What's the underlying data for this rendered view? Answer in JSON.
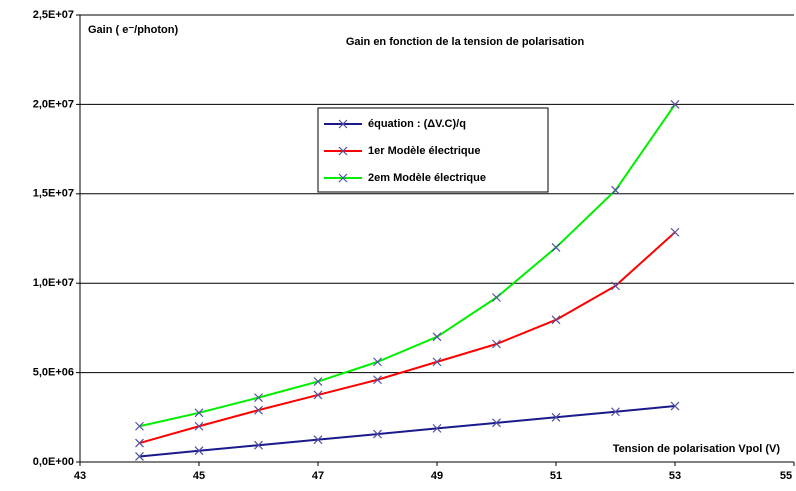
{
  "chart_data": {
    "type": "line",
    "title": "Gain en fonction de la tension de polarisation",
    "y_label": "Gain ( e⁻/photon)",
    "x_label": "Tension de polarisation Vpol (V)",
    "x": [
      44,
      45,
      46,
      47,
      48,
      49,
      50,
      51,
      52,
      53
    ],
    "series": [
      {
        "name": "équation : (ΔV.C)/q",
        "color": "#1a1a8c",
        "values": [
          310000,
          630000,
          940000,
          1250000,
          1560000,
          1880000,
          2190000,
          2500000,
          2810000,
          3130000
        ]
      },
      {
        "name": "1er Modèle électrique",
        "color": "#ff0000",
        "values": [
          1060000,
          2000000,
          2900000,
          3750000,
          4600000,
          5600000,
          6600000,
          7950000,
          9850000,
          12850000
        ]
      },
      {
        "name": "2em Modèle électrique",
        "color": "#00ee00",
        "values": [
          2000000,
          2750000,
          3600000,
          4500000,
          5600000,
          7000000,
          9200000,
          12000000,
          15200000,
          20000000
        ]
      }
    ],
    "xlim": [
      43,
      55
    ],
    "xticks": [
      43,
      45,
      47,
      49,
      51,
      53,
      55
    ],
    "ylim": [
      0,
      25000000
    ],
    "yticks": [
      {
        "value": 0,
        "label": "0,0E+00"
      },
      {
        "value": 5000000,
        "label": "5,0E+06"
      },
      {
        "value": 10000000,
        "label": "1,0E+07"
      },
      {
        "value": 15000000,
        "label": "1,5E+07"
      },
      {
        "value": 20000000,
        "label": "2,0E+07"
      },
      {
        "value": 25000000,
        "label": "2,5E+07"
      }
    ],
    "grid": true
  }
}
